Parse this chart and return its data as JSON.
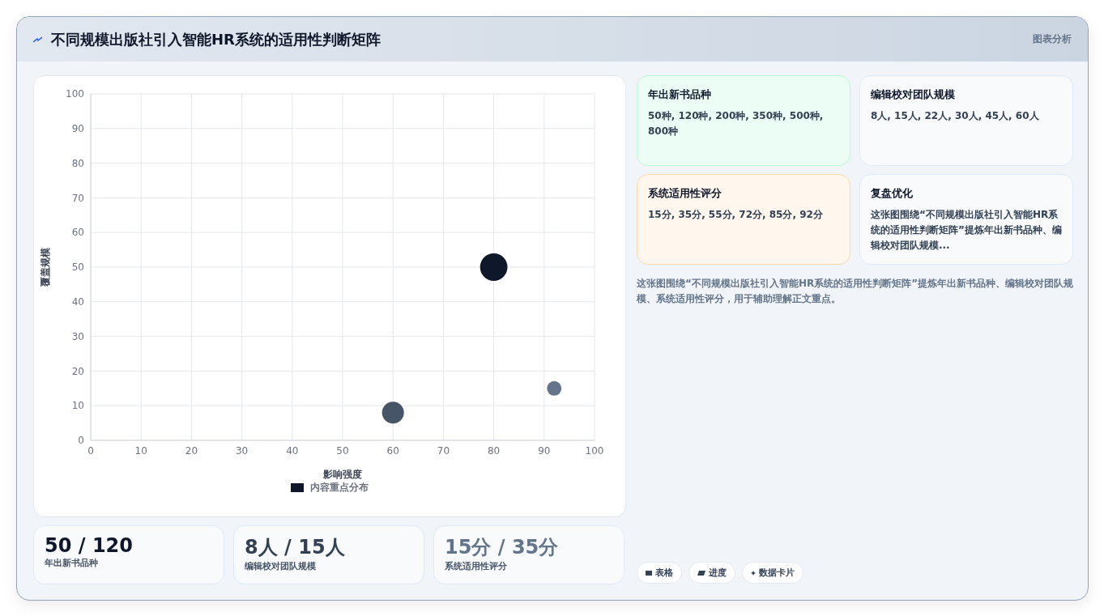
{
  "chart_data": [
    {
      "type": "bubble",
      "title": "不同规模出版社引入智能HR系统的适用性判断矩阵",
      "xlabel": "影响强度",
      "ylabel": "覆盖规模",
      "x": [
        80,
        60,
        92
      ],
      "series": [
        {
          "name": "内容重点分布",
          "color": "#0f172a",
          "colors": [
            "#0f172a",
            "#475569",
            "#64748b"
          ],
          "values": [
            50,
            8,
            15
          ],
          "sizes": [
            1,
            0.64,
            0.28
          ]
        }
      ],
      "xlim": [
        0,
        100
      ],
      "xticks": [
        0,
        10,
        20,
        30,
        40,
        50,
        60,
        70,
        80,
        90,
        100
      ],
      "ylim": [
        0,
        100
      ],
      "yticks": [
        0,
        10,
        20,
        30,
        40,
        50,
        60,
        70,
        80,
        90,
        100
      ],
      "grid": true,
      "legend": "bottom",
      "annotations": [
        "图表分析"
      ]
    },
    {
      "type": "other",
      "annotations": [
        "年出新书品种",
        "50种, 120种, 200种, 350种, 500种, 800种",
        "编辑校对团队规模",
        "8人, 15人, 22人, 30人, 45人, 60人",
        "系统适用性评分",
        "15分, 35分, 55分, 72分, 85分, 92分",
        "复盘优化",
        "这张图围绕“不同规模出版社引入智能HR系统的适用性判断矩阵”提炼年出新书品种、编辑校对团队规模...",
        "这张图围绕“不同规模出版社引入智能HR系统的适用性判断矩阵”提炼年出新书品种、编辑校对团队规模、系统适用性评分，用于辅助理解正文重点。",
        "50 / 120",
        "年出新书品种",
        "8人 / 15人",
        "编辑校对团队规模",
        "15分 / 35分",
        "系统适用性评分",
        "表格",
        "进度",
        "数据卡片"
      ]
    }
  ]
}
